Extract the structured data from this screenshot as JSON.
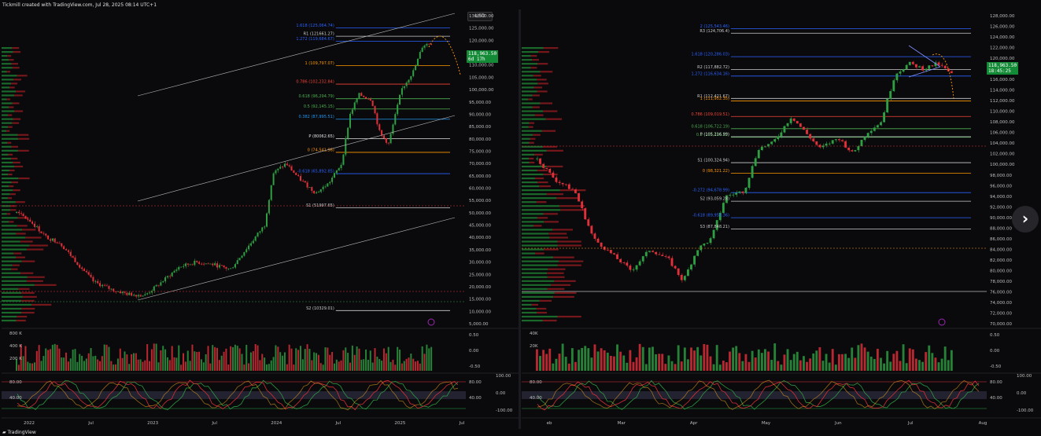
{
  "header": {
    "title": "Tickmill created with TradingView.com, Jul 28, 2025 08:14 UTC+1"
  },
  "footer": {
    "brand": "TradingView"
  },
  "currency": "USD",
  "colors": {
    "up": "#2ea043",
    "down": "#e2303a",
    "price_tag": "#138a36",
    "fib_blue": "#2962ff",
    "fib_orange": "#ff9800",
    "volume_profile": "#1d7a30",
    "volume_profile_red": "#8a1a1f"
  },
  "chart_data": [
    {
      "type": "candlestick",
      "panel": "left",
      "x_ticks": [
        "2022",
        "Jul",
        "2023",
        "Jul",
        "2024",
        "Jul",
        "2025",
        "Jul"
      ],
      "y_ticks": [
        "130,000.00",
        "125,000.00",
        "120,000.00",
        "115,000.00",
        "110,000.00",
        "105,000.00",
        "100,000.00",
        "95,000.00",
        "90,000.00",
        "85,000.00",
        "80,000.00",
        "75,000.00",
        "70,000.00",
        "65,000.00",
        "60,000.00",
        "55,000.00",
        "50,000.00",
        "45,000.00",
        "40,000.00",
        "35,000.00",
        "30,000.00",
        "25,000.00",
        "20,000.00",
        "15,000.00",
        "10,000.00",
        "5,000.00"
      ],
      "ylim": [
        5000,
        130000
      ],
      "last_price": "118,963.50",
      "last_price_sub": "6d 17h",
      "levels": [
        {
          "label": "1.618 (125,064.74)",
          "value": 125064.74,
          "color": "#2962ff"
        },
        {
          "label": "R1 (121661.27)",
          "value": 121661.27,
          "color": "#cccccc"
        },
        {
          "label": "1.272 (119,684.67)",
          "value": 119684.67,
          "color": "#2962ff"
        },
        {
          "label": "1 (109,797.07)",
          "value": 109797.07,
          "color": "#ff9800"
        },
        {
          "label": "0.786 (102,232.84)",
          "value": 102232.84,
          "color": "#f44336"
        },
        {
          "label": "0.618 (96,294.79)",
          "value": 96294.79,
          "color": "#4caf50"
        },
        {
          "label": "0.5 (92,145.15)",
          "value": 92145.15,
          "color": "#4caf50"
        },
        {
          "label": "0.382 (87,995.51)",
          "value": 87995.51,
          "color": "#2196f3"
        },
        {
          "label": "P (80062.65)",
          "value": 80062.65,
          "color": "#e0e0e0"
        },
        {
          "label": "0 (74,541.96)",
          "value": 74541.96,
          "color": "#ff9800"
        },
        {
          "label": "-0.618 (65,892.85)",
          "value": 65892.85,
          "color": "#2962ff"
        },
        {
          "label": "S1 (51997.65)",
          "value": 51997.65,
          "color": "#cccccc"
        },
        {
          "label": "S2 (10329.01)",
          "value": 10329.01,
          "color": "#cccccc"
        }
      ],
      "volume_ticks": [
        "800 K",
        "400 K",
        "200 K"
      ],
      "volume_right_ticks": [
        "0.50",
        "0.00",
        "-0.50"
      ],
      "osc_ticks": [
        "80.00",
        "40.00"
      ],
      "osc_right_ticks": [
        "100.00",
        "0.00",
        "-100.00"
      ],
      "osc_right_ticks2": [
        "80.00",
        "40.00"
      ]
    },
    {
      "type": "candlestick",
      "panel": "right",
      "x_ticks": [
        "eb",
        "Mar",
        "Apr",
        "May",
        "Jun",
        "Jul",
        "Aug"
      ],
      "y_ticks": [
        "128,000.00",
        "126,000.00",
        "124,000.00",
        "122,000.00",
        "120,000.00",
        "118,000.00",
        "116,000.00",
        "114,000.00",
        "112,000.00",
        "110,000.00",
        "108,000.00",
        "106,000.00",
        "104,000.00",
        "102,000.00",
        "100,000.00",
        "98,000.00",
        "96,000.00",
        "94,000.00",
        "92,000.00",
        "90,000.00",
        "88,000.00",
        "86,000.00",
        "84,000.00",
        "82,000.00",
        "80,000.00",
        "78,000.00",
        "76,000.00",
        "74,000.00",
        "72,000.00",
        "70,000.00"
      ],
      "ylim": [
        70000,
        128000
      ],
      "last_price": "118,963.50",
      "last_price_sub": "18:45:25",
      "levels": [
        {
          "label": "2 (125,543.46)",
          "value": 125543.46,
          "color": "#2962ff"
        },
        {
          "label": "R3 (124,706.4)",
          "value": 124706.4,
          "color": "#cccccc"
        },
        {
          "label": "1.618 (120,286.03)",
          "value": 120286.03,
          "color": "#2962ff"
        },
        {
          "label": "R2 (117,882.72)",
          "value": 117882.72,
          "color": "#cccccc"
        },
        {
          "label": "1.272 (116,634.16)",
          "value": 116634.16,
          "color": "#2962ff"
        },
        {
          "label": "R1 (112,421.67)",
          "value": 112421.67,
          "color": "#cccccc"
        },
        {
          "label": "1 (111,952.35)",
          "value": 111952.35,
          "color": "#ff9800"
        },
        {
          "label": "0.786 (109,019.51)",
          "value": 109019.51,
          "color": "#f44336"
        },
        {
          "label": "0.618 (106,722.19)",
          "value": 106722.19,
          "color": "#4caf50"
        },
        {
          "label": "0.5 (105,106.85)",
          "value": 105106.85,
          "color": "#4caf50"
        },
        {
          "label": "P (105,216.99)",
          "value": 105216.99,
          "color": "#cccccc"
        },
        {
          "label": "S1 (100,324.94)",
          "value": 100324.94,
          "color": "#cccccc"
        },
        {
          "label": "0 (98,321.22)",
          "value": 98321.22,
          "color": "#ff9800"
        },
        {
          "label": "-0.272 (94,678.99)",
          "value": 94678.99,
          "color": "#2962ff"
        },
        {
          "label": "S2 (93,059.28)",
          "value": 93059.28,
          "color": "#cccccc"
        },
        {
          "label": "-0.618 (89,959.36)",
          "value": 89959.36,
          "color": "#2962ff"
        },
        {
          "label": "S3 (87,848.21)",
          "value": 87848.21,
          "color": "#cccccc"
        }
      ],
      "volume_ticks": [
        "40K",
        "20K"
      ],
      "volume_right_ticks": [
        "0.50",
        "0.00",
        "-0.50"
      ],
      "osc_ticks": [
        "80.00",
        "40.00"
      ],
      "osc_right_ticks": [
        "100.00",
        "0.00",
        "-100.00"
      ],
      "osc_right_ticks2": [
        "80.00",
        "40.00"
      ]
    }
  ]
}
